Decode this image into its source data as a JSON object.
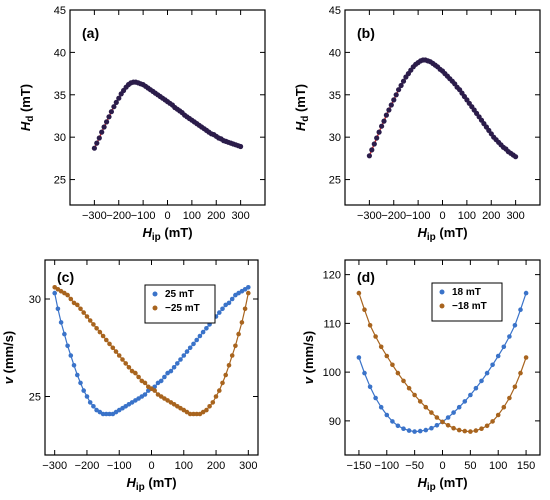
{
  "colors": {
    "dark_marker": "#2b1c4a",
    "fit_red": "#e03030",
    "blue": "#3a73c9",
    "brown": "#a8641e"
  },
  "chart_data": [
    {
      "panel": "(a)",
      "type": "scatter",
      "xlabel_main": "H",
      "xlabel_sub": "ip",
      "xlabel_unit": "(mT)",
      "ylabel_main": "H",
      "ylabel_sub": "d",
      "ylabel_unit": "(mT)",
      "xlim": [
        -400,
        400
      ],
      "ylim": [
        22,
        45
      ],
      "xticks": [
        -300,
        -200,
        -100,
        0,
        100,
        200,
        300
      ],
      "yticks": [
        25,
        30,
        35,
        40,
        45
      ],
      "series": [
        {
          "marker": "dark",
          "fit": "red",
          "x": [
            -300,
            -290,
            -280,
            -270,
            -260,
            -250,
            -240,
            -230,
            -220,
            -210,
            -200,
            -190,
            -180,
            -170,
            -160,
            -150,
            -140,
            -130,
            -120,
            -110,
            -100,
            -90,
            -80,
            -70,
            -60,
            -50,
            -40,
            -30,
            -20,
            -10,
            0,
            10,
            20,
            30,
            40,
            50,
            60,
            70,
            80,
            90,
            100,
            110,
            120,
            130,
            140,
            150,
            160,
            170,
            180,
            190,
            200,
            210,
            220,
            230,
            240,
            250,
            260,
            270,
            280,
            290,
            300
          ],
          "y": [
            28.7,
            29.3,
            29.9,
            30.6,
            31.2,
            31.8,
            32.4,
            33.0,
            33.6,
            34.1,
            34.6,
            35.1,
            35.5,
            35.9,
            36.2,
            36.4,
            36.5,
            36.5,
            36.4,
            36.3,
            36.2,
            36.0,
            35.8,
            35.6,
            35.4,
            35.2,
            35.0,
            34.8,
            34.6,
            34.4,
            34.2,
            34.0,
            33.8,
            33.5,
            33.3,
            33.1,
            32.9,
            32.6,
            32.4,
            32.2,
            32.0,
            31.8,
            31.6,
            31.4,
            31.2,
            31.0,
            30.8,
            30.6,
            30.4,
            30.3,
            30.1,
            29.9,
            29.8,
            29.6,
            29.5,
            29.4,
            29.3,
            29.2,
            29.1,
            29.0,
            28.9
          ]
        }
      ]
    },
    {
      "panel": "(b)",
      "type": "scatter",
      "xlabel_main": "H",
      "xlabel_sub": "ip",
      "xlabel_unit": "(mT)",
      "ylabel_main": "H",
      "ylabel_sub": "d",
      "ylabel_unit": "(mT)",
      "xlim": [
        -400,
        400
      ],
      "ylim": [
        22,
        45
      ],
      "xticks": [
        -300,
        -200,
        -100,
        0,
        100,
        200,
        300
      ],
      "yticks": [
        25,
        30,
        35,
        40,
        45
      ],
      "series": [
        {
          "marker": "dark",
          "fit": "red",
          "x": [
            -300,
            -290,
            -280,
            -270,
            -260,
            -250,
            -240,
            -230,
            -220,
            -210,
            -200,
            -190,
            -180,
            -170,
            -160,
            -150,
            -140,
            -130,
            -120,
            -110,
            -100,
            -90,
            -80,
            -70,
            -60,
            -50,
            -40,
            -30,
            -20,
            -10,
            0,
            10,
            20,
            30,
            40,
            50,
            60,
            70,
            80,
            90,
            100,
            110,
            120,
            130,
            140,
            150,
            160,
            170,
            180,
            190,
            200,
            210,
            220,
            230,
            240,
            250,
            260,
            270,
            280,
            290,
            300
          ],
          "y": [
            27.8,
            28.5,
            29.2,
            29.9,
            30.6,
            31.3,
            31.9,
            32.6,
            33.2,
            33.8,
            34.4,
            35.0,
            35.6,
            36.1,
            36.6,
            37.1,
            37.5,
            37.9,
            38.3,
            38.6,
            38.8,
            39.0,
            39.1,
            39.1,
            39.0,
            38.9,
            38.7,
            38.5,
            38.3,
            38.0,
            37.8,
            37.5,
            37.2,
            36.9,
            36.6,
            36.3,
            35.9,
            35.6,
            35.2,
            34.8,
            34.4,
            34.0,
            33.6,
            33.2,
            32.8,
            32.4,
            32.0,
            31.6,
            31.2,
            30.8,
            30.4,
            30.0,
            29.7,
            29.4,
            29.1,
            28.8,
            28.6,
            28.3,
            28.1,
            27.9,
            27.7
          ]
        }
      ]
    },
    {
      "panel": "(c)",
      "type": "scatter",
      "xlabel_main": "H",
      "xlabel_sub": "ip",
      "xlabel_unit": "(mT)",
      "ylabel_main": "v",
      "ylabel_unit": "(mm/s)",
      "xlim": [
        -330,
        330
      ],
      "ylim": [
        22,
        32
      ],
      "xticks": [
        -300,
        -200,
        -100,
        0,
        100,
        200,
        300
      ],
      "yticks": [
        25,
        30
      ],
      "legend": "top-right",
      "series": [
        {
          "name": "25 mT",
          "color": "blue",
          "x": [
            -300,
            -290,
            -280,
            -270,
            -260,
            -250,
            -240,
            -230,
            -220,
            -210,
            -200,
            -190,
            -180,
            -170,
            -160,
            -150,
            -140,
            -130,
            -120,
            -110,
            -100,
            -90,
            -80,
            -70,
            -60,
            -50,
            -40,
            -30,
            -20,
            -10,
            0,
            10,
            20,
            30,
            40,
            50,
            60,
            70,
            80,
            90,
            100,
            110,
            120,
            130,
            140,
            150,
            160,
            170,
            180,
            190,
            200,
            210,
            220,
            230,
            240,
            250,
            260,
            270,
            280,
            290,
            300
          ],
          "y": [
            30.3,
            29.5,
            28.8,
            28.2,
            27.6,
            27.1,
            26.6,
            26.1,
            25.7,
            25.3,
            25.0,
            24.7,
            24.5,
            24.3,
            24.2,
            24.1,
            24.1,
            24.1,
            24.1,
            24.2,
            24.3,
            24.4,
            24.5,
            24.6,
            24.7,
            24.8,
            24.9,
            25.0,
            25.1,
            25.3,
            25.4,
            25.5,
            25.7,
            25.8,
            26.0,
            26.2,
            26.3,
            26.5,
            26.7,
            26.9,
            27.1,
            27.3,
            27.5,
            27.7,
            27.9,
            28.1,
            28.3,
            28.5,
            28.7,
            28.9,
            29.1,
            29.3,
            29.5,
            29.7,
            29.8,
            30.0,
            30.2,
            30.3,
            30.4,
            30.5,
            30.6
          ]
        },
        {
          "name": "−25 mT",
          "color": "brown",
          "x": [
            -300,
            -290,
            -280,
            -270,
            -260,
            -250,
            -240,
            -230,
            -220,
            -210,
            -200,
            -190,
            -180,
            -170,
            -160,
            -150,
            -140,
            -130,
            -120,
            -110,
            -100,
            -90,
            -80,
            -70,
            -60,
            -50,
            -40,
            -30,
            -20,
            -10,
            0,
            10,
            20,
            30,
            40,
            50,
            60,
            70,
            80,
            90,
            100,
            110,
            120,
            130,
            140,
            150,
            160,
            170,
            180,
            190,
            200,
            210,
            220,
            230,
            240,
            250,
            260,
            270,
            280,
            290,
            300
          ],
          "y": [
            30.6,
            30.5,
            30.4,
            30.3,
            30.2,
            30.0,
            29.8,
            29.7,
            29.5,
            29.3,
            29.1,
            28.9,
            28.7,
            28.5,
            28.3,
            28.1,
            27.9,
            27.7,
            27.5,
            27.3,
            27.1,
            26.9,
            26.7,
            26.5,
            26.3,
            26.2,
            26.0,
            25.8,
            25.7,
            25.5,
            25.4,
            25.3,
            25.1,
            25.0,
            24.9,
            24.8,
            24.7,
            24.6,
            24.5,
            24.4,
            24.3,
            24.2,
            24.1,
            24.1,
            24.1,
            24.1,
            24.2,
            24.3,
            24.5,
            24.7,
            25.0,
            25.3,
            25.7,
            26.1,
            26.6,
            27.1,
            27.6,
            28.2,
            28.8,
            29.5,
            30.3
          ]
        }
      ]
    },
    {
      "panel": "(d)",
      "type": "scatter",
      "xlabel_main": "H",
      "xlabel_sub": "ip",
      "xlabel_unit": "(mT)",
      "ylabel_main": "v",
      "ylabel_unit": "(mm/s)",
      "xlim": [
        -175,
        175
      ],
      "ylim": [
        83,
        123
      ],
      "xticks": [
        -150,
        -100,
        -50,
        0,
        50,
        100,
        150
      ],
      "yticks": [
        90,
        100,
        110,
        120
      ],
      "legend": "top-left",
      "series": [
        {
          "name": "18 mT",
          "color": "blue",
          "x": [
            -150,
            -140,
            -130,
            -120,
            -110,
            -100,
            -90,
            -80,
            -70,
            -60,
            -50,
            -40,
            -30,
            -20,
            -10,
            0,
            10,
            20,
            30,
            40,
            50,
            60,
            70,
            80,
            90,
            100,
            110,
            120,
            130,
            140,
            150
          ],
          "y": [
            103.0,
            99.8,
            97.0,
            94.7,
            92.8,
            91.2,
            89.9,
            89.0,
            88.4,
            88.0,
            87.8,
            87.9,
            88.1,
            88.5,
            89.1,
            89.8,
            90.7,
            91.7,
            92.8,
            94.0,
            95.3,
            96.7,
            98.2,
            99.8,
            101.5,
            103.3,
            105.2,
            107.3,
            109.6,
            112.8,
            116.2
          ]
        },
        {
          "name": "−18 mT",
          "color": "brown",
          "x": [
            -150,
            -140,
            -130,
            -120,
            -110,
            -100,
            -90,
            -80,
            -70,
            -60,
            -50,
            -40,
            -30,
            -20,
            -10,
            0,
            10,
            20,
            30,
            40,
            50,
            60,
            70,
            80,
            90,
            100,
            110,
            120,
            130,
            140,
            150
          ],
          "y": [
            116.2,
            112.8,
            109.6,
            107.3,
            105.2,
            103.3,
            101.5,
            99.8,
            98.2,
            96.7,
            95.3,
            94.0,
            92.8,
            91.7,
            90.7,
            89.8,
            89.1,
            88.5,
            88.1,
            87.9,
            87.8,
            88.0,
            88.4,
            89.0,
            89.9,
            91.2,
            92.8,
            94.7,
            97.0,
            99.8,
            103.0
          ]
        }
      ]
    }
  ]
}
